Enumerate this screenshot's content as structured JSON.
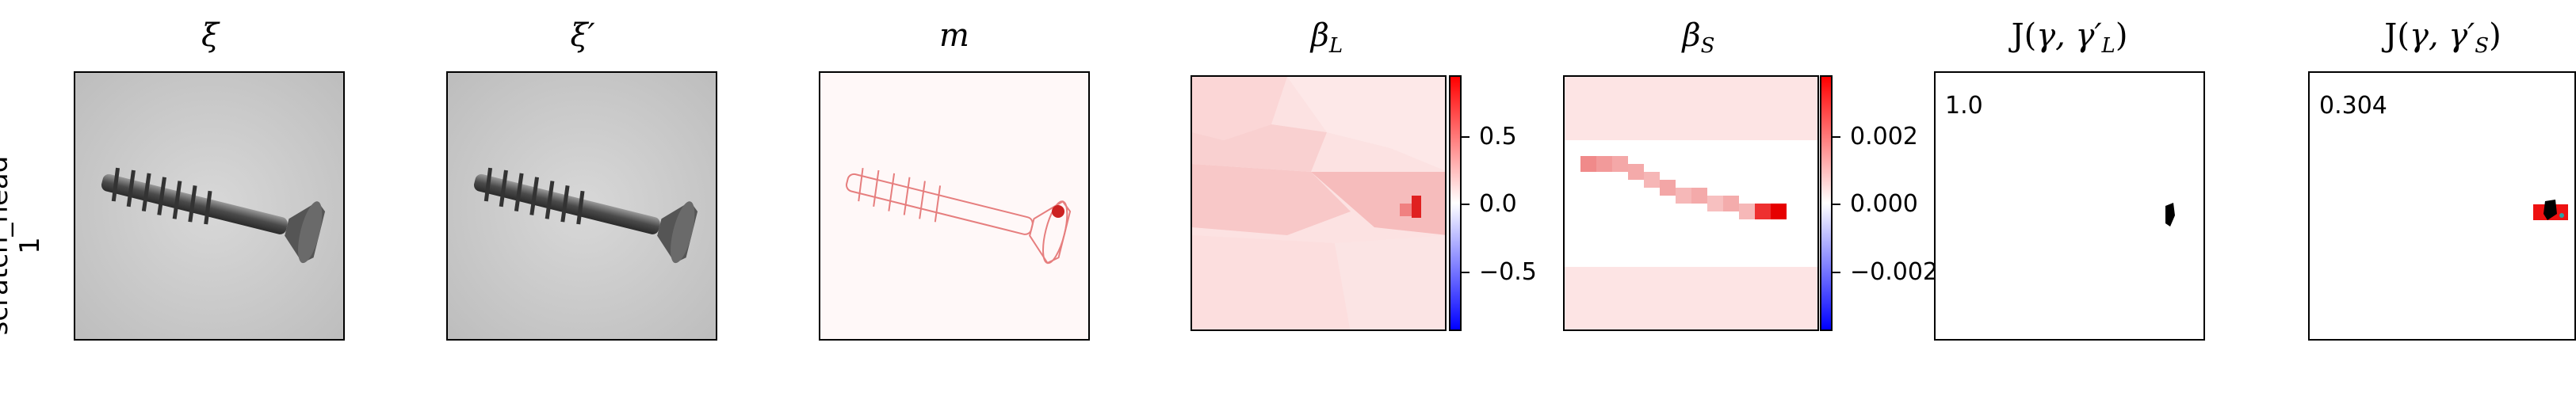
{
  "row_label": {
    "line1": "scratch_head",
    "line2": "1"
  },
  "panels": [
    {
      "title": "ξ"
    },
    {
      "title": "ξ′"
    },
    {
      "title": "m"
    },
    {
      "title_base": "β",
      "title_sub": "L"
    },
    {
      "title_base": "β",
      "title_sub": "S"
    },
    {
      "title_prefix": "J(",
      "title_mid": "γ, γ′",
      "title_sub": "L",
      "title_suffix": ")"
    },
    {
      "title_prefix": "J(",
      "title_mid": "γ, γ′",
      "title_sub": "S",
      "title_suffix": ")"
    }
  ],
  "colorbar_L": {
    "ticks": [
      "0.5",
      "0.0",
      "−0.5"
    ]
  },
  "colorbar_S": {
    "ticks": [
      "0.002",
      "0.000",
      "−0.002"
    ]
  },
  "j_values": {
    "L": "1.0",
    "S": "0.304"
  },
  "colors": {
    "positive": "#ff0000",
    "negative": "#0000ff",
    "neutral": "#ffffff"
  }
}
